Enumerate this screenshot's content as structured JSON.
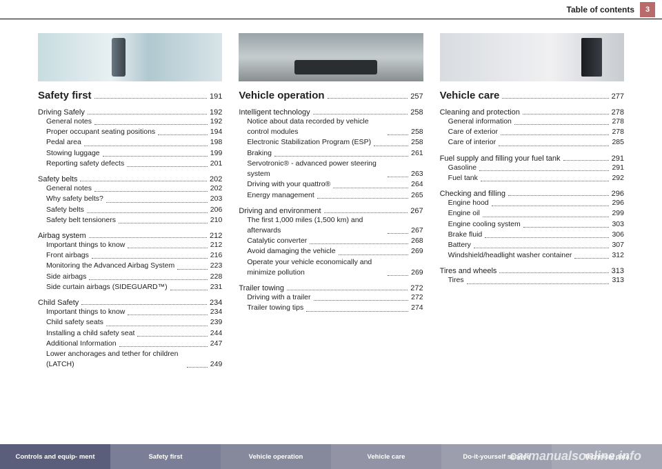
{
  "header": {
    "title": "Table of contents",
    "page": "3"
  },
  "sections": [
    {
      "title": "Safety first",
      "page": "191",
      "thumb": "thumb1",
      "subs": [
        {
          "title": "Driving Safely",
          "page": "192",
          "items": [
            {
              "label": "General notes",
              "page": "192"
            },
            {
              "label": "Proper occupant seating positions",
              "page": "194"
            },
            {
              "label": "Pedal area",
              "page": "198"
            },
            {
              "label": "Stowing luggage",
              "page": "199"
            },
            {
              "label": "Reporting safety defects",
              "page": "201"
            }
          ]
        },
        {
          "title": "Safety belts",
          "page": "202",
          "items": [
            {
              "label": "General notes",
              "page": "202"
            },
            {
              "label": "Why safety belts?",
              "page": "203"
            },
            {
              "label": "Safety belts",
              "page": "206"
            },
            {
              "label": "Safety belt tensioners",
              "page": "210"
            }
          ]
        },
        {
          "title": "Airbag system",
          "page": "212",
          "items": [
            {
              "label": "Important things to know",
              "page": "212"
            },
            {
              "label": "Front airbags",
              "page": "216"
            },
            {
              "label": "Monitoring the Advanced Airbag System",
              "page": "223"
            },
            {
              "label": "Side airbags",
              "page": "228"
            },
            {
              "label": "Side curtain airbags (SIDEGUARD™)",
              "page": "231"
            }
          ]
        },
        {
          "title": "Child Safety",
          "page": "234",
          "items": [
            {
              "label": "Important things to know",
              "page": "234"
            },
            {
              "label": "Child safety seats",
              "page": "239"
            },
            {
              "label": "Installing a child safety seat",
              "page": "244"
            },
            {
              "label": "Additional Information",
              "page": "247"
            },
            {
              "label": "Lower anchorages and tether for children (LATCH)",
              "page": "249"
            }
          ]
        }
      ]
    },
    {
      "title": "Vehicle operation",
      "page": "257",
      "thumb": "thumb2",
      "subs": [
        {
          "title": "Intelligent technology",
          "page": "258",
          "items": [
            {
              "label": "Notice about data recorded by vehicle control modules",
              "page": "258"
            },
            {
              "label": "Electronic Stabilization Program (ESP)",
              "page": "258"
            },
            {
              "label": "Braking",
              "page": "261"
            },
            {
              "label": "Servotronic® - advanced power steering system",
              "page": "263"
            },
            {
              "label": "Driving with your quattro®",
              "page": "264"
            },
            {
              "label": "Energy management",
              "page": "265"
            }
          ]
        },
        {
          "title": "Driving and environment",
          "page": "267",
          "items": [
            {
              "label": "The first 1,000 miles (1,500 km) and afterwards",
              "page": "267"
            },
            {
              "label": "Catalytic converter",
              "page": "268"
            },
            {
              "label": "Avoid damaging the vehicle",
              "page": "269"
            },
            {
              "label": "Operate your vehicle economically and minimize pollution",
              "page": "269"
            }
          ]
        },
        {
          "title": "Trailer towing",
          "page": "272",
          "items": [
            {
              "label": "Driving with a trailer",
              "page": "272"
            },
            {
              "label": "Trailer towing tips",
              "page": "274"
            }
          ]
        }
      ]
    },
    {
      "title": "Vehicle care",
      "page": "277",
      "thumb": "thumb3",
      "subs": [
        {
          "title": "Cleaning and protection",
          "page": "278",
          "items": [
            {
              "label": "General information",
              "page": "278"
            },
            {
              "label": "Care of exterior",
              "page": "278"
            },
            {
              "label": "Care of interior",
              "page": "285"
            }
          ]
        },
        {
          "title": "Fuel supply and filling your fuel tank",
          "page": "291",
          "items": [
            {
              "label": "Gasoline",
              "page": "291"
            },
            {
              "label": "Fuel tank",
              "page": "292"
            }
          ]
        },
        {
          "title": "Checking and filling",
          "page": "296",
          "items": [
            {
              "label": "Engine hood",
              "page": "296"
            },
            {
              "label": "Engine oil",
              "page": "299"
            },
            {
              "label": "Engine cooling system",
              "page": "303"
            },
            {
              "label": "Brake fluid",
              "page": "306"
            },
            {
              "label": "Battery",
              "page": "307"
            },
            {
              "label": "Windshield/headlight washer container",
              "page": "312"
            }
          ]
        },
        {
          "title": "Tires and wheels",
          "page": "313",
          "items": [
            {
              "label": "Tires",
              "page": "313"
            }
          ]
        }
      ]
    }
  ],
  "footer": [
    "Controls and equip-\nment",
    "Safety first",
    "Vehicle operation",
    "Vehicle care",
    "Do-it-yourself service",
    "Technical data"
  ],
  "watermark": "carmanualsonline.info"
}
